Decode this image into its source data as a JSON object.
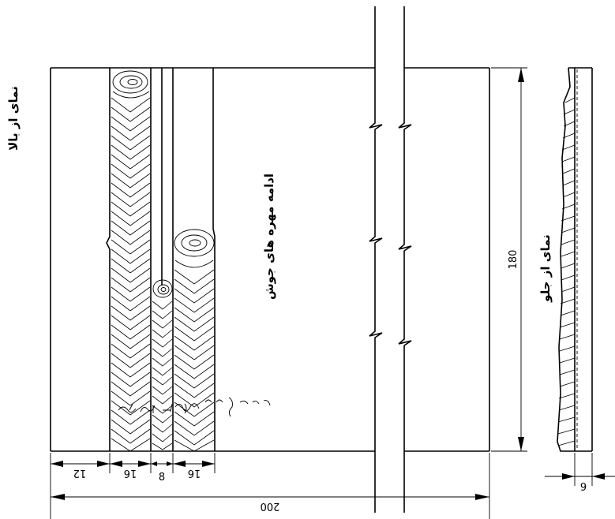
{
  "labels": {
    "top_view": "نمای از بالا",
    "front_view": "نمای از جلو",
    "weld_continuation": "ادامه مهره های جوش"
  },
  "dimensions": {
    "height": "180",
    "width": "200",
    "seg_1": "12",
    "seg_2": "16",
    "seg_3": "8",
    "seg_4": "16",
    "thickness": "6"
  }
}
